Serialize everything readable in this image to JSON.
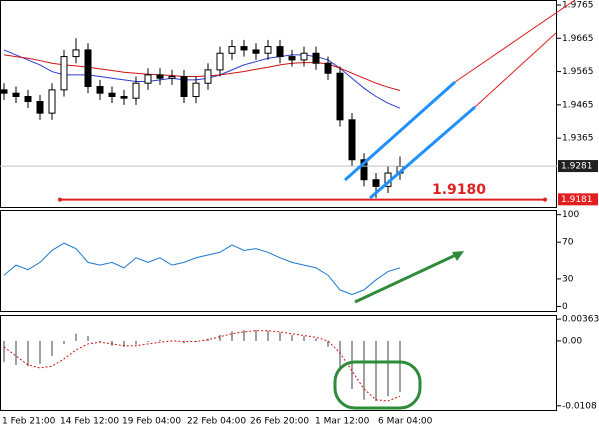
{
  "chart_data": [
    {
      "type": "candlestick",
      "ylim": [
        1.9158,
        1.978
      ],
      "yticks": [
        1.9765,
        1.9665,
        1.9565,
        1.9465,
        1.9365
      ],
      "open": [
        1.951,
        1.95,
        1.949,
        1.9475,
        1.944,
        1.951,
        1.961,
        1.963,
        1.952,
        1.95,
        1.949,
        1.9485,
        1.953,
        1.9555,
        1.9545,
        1.955,
        1.949,
        1.953,
        1.957,
        1.962,
        1.964,
        1.963,
        1.962,
        1.964,
        1.961,
        1.96,
        1.962,
        1.959,
        1.956,
        1.942,
        1.93,
        1.924,
        1.922,
        1.926
      ],
      "high": [
        1.953,
        1.952,
        1.951,
        1.9495,
        1.953,
        1.963,
        1.9665,
        1.965,
        1.954,
        1.952,
        1.951,
        1.955,
        1.9575,
        1.9575,
        1.957,
        1.957,
        1.955,
        1.959,
        1.964,
        1.966,
        1.966,
        1.965,
        1.966,
        1.966,
        1.963,
        1.964,
        1.964,
        1.961,
        1.958,
        1.944,
        1.932,
        1.926,
        1.928,
        1.931
      ],
      "low": [
        1.948,
        1.947,
        1.9455,
        1.942,
        1.942,
        1.949,
        1.959,
        1.95,
        1.948,
        1.947,
        1.9465,
        1.9465,
        1.951,
        1.9525,
        1.9525,
        1.947,
        1.947,
        1.951,
        1.955,
        1.96,
        1.961,
        1.96,
        1.96,
        1.959,
        1.958,
        1.958,
        1.957,
        1.954,
        1.94,
        1.928,
        1.922,
        1.9185,
        1.92,
        1.924
      ],
      "close": [
        1.95,
        1.949,
        1.9475,
        1.944,
        1.951,
        1.961,
        1.963,
        1.952,
        1.95,
        1.949,
        1.9485,
        1.953,
        1.9555,
        1.9545,
        1.955,
        1.949,
        1.953,
        1.957,
        1.962,
        1.964,
        1.963,
        1.962,
        1.964,
        1.961,
        1.96,
        1.962,
        1.959,
        1.956,
        1.942,
        1.93,
        1.924,
        1.922,
        1.926,
        1.928
      ],
      "ma_series": [
        {
          "color": "#2b3bd6",
          "values": [
            1.963,
            1.9615,
            1.96,
            1.9585,
            1.9565,
            1.9555,
            1.9555,
            1.9555,
            1.955,
            1.9545,
            1.954,
            1.9535,
            1.9535,
            1.954,
            1.9545,
            1.954,
            1.954,
            1.9545,
            1.9555,
            1.957,
            1.9585,
            1.9595,
            1.9605,
            1.961,
            1.9615,
            1.9615,
            1.961,
            1.96,
            1.9575,
            1.9545,
            1.9515,
            1.949,
            1.947,
            1.9455
          ]
        },
        {
          "color": "#d01010",
          "values": [
            1.9615,
            1.961,
            1.9605,
            1.9598,
            1.959,
            1.9585,
            1.9582,
            1.9578,
            1.9573,
            1.9568,
            1.9563,
            1.956,
            1.9557,
            1.9555,
            1.9553,
            1.955,
            1.955,
            1.9552,
            1.9555,
            1.956,
            1.9565,
            1.9572,
            1.9578,
            1.9585,
            1.959,
            1.9592,
            1.9592,
            1.9588,
            1.9575,
            1.956,
            1.9545,
            1.953,
            1.9518,
            1.9508
          ]
        }
      ],
      "level": {
        "value": 1.918,
        "label": "1.9180"
      },
      "current_price": 1.9281,
      "level_price": 1.9181
    },
    {
      "type": "line",
      "color": "#1e78d0",
      "ylim": [
        -5,
        104
      ],
      "yticks": [
        100,
        70,
        30,
        0
      ],
      "values": [
        34,
        45,
        40,
        48,
        61,
        69,
        63,
        48,
        45,
        48,
        42,
        53,
        48,
        53,
        45,
        48,
        53,
        56,
        59,
        67,
        61,
        63,
        59,
        53,
        48,
        45,
        42,
        34,
        18,
        13,
        18,
        29,
        38,
        42
      ]
    },
    {
      "type": "bar",
      "color": "#a0a0a0",
      "line_color": "#d01010",
      "ylim": [
        -0.0115,
        0.00415
      ],
      "yticks": [
        {
          "value": 0.00363,
          "label": "0.00363"
        },
        {
          "value": 0,
          "label": "0.00"
        },
        -0.0108
      ],
      "values": [
        -0.0035,
        -0.004,
        -0.0042,
        -0.0038,
        -0.0025,
        -0.0005,
        0.0012,
        0.0008,
        -0.0002,
        -0.0008,
        -0.001,
        -0.0006,
        -0.0002,
        0.0002,
        0,
        -0.0004,
        -0.0002,
        0.0004,
        0.001,
        0.0016,
        0.0018,
        0.0018,
        0.0017,
        0.0014,
        0.001,
        0.0008,
        0.0004,
        -0.001,
        -0.0045,
        -0.008,
        -0.0098,
        -0.01,
        -0.0092,
        -0.0085
      ],
      "signal": [
        -0.001,
        -0.0025,
        -0.004,
        -0.0045,
        -0.0042,
        -0.003,
        -0.0015,
        -0.0005,
        -0.0002,
        -0.0005,
        -0.0008,
        -0.0008,
        -0.0005,
        -0.0002,
        0,
        -0.0001,
        -0.0001,
        0.0002,
        0.0007,
        0.0012,
        0.0015,
        0.0017,
        0.0017,
        0.0015,
        0.0012,
        0.0009,
        0.0006,
        0,
        -0.002,
        -0.005,
        -0.008,
        -0.0098,
        -0.01,
        -0.0092
      ],
      "x_labels": [
        "1 Feb 21:00",
        "14 Feb 12:00",
        "19 Feb 04:00",
        "22 Feb 04:00",
        "26 Feb 20:00",
        "1 Mar 12:00",
        "6 Mar 04:00"
      ]
    }
  ]
}
